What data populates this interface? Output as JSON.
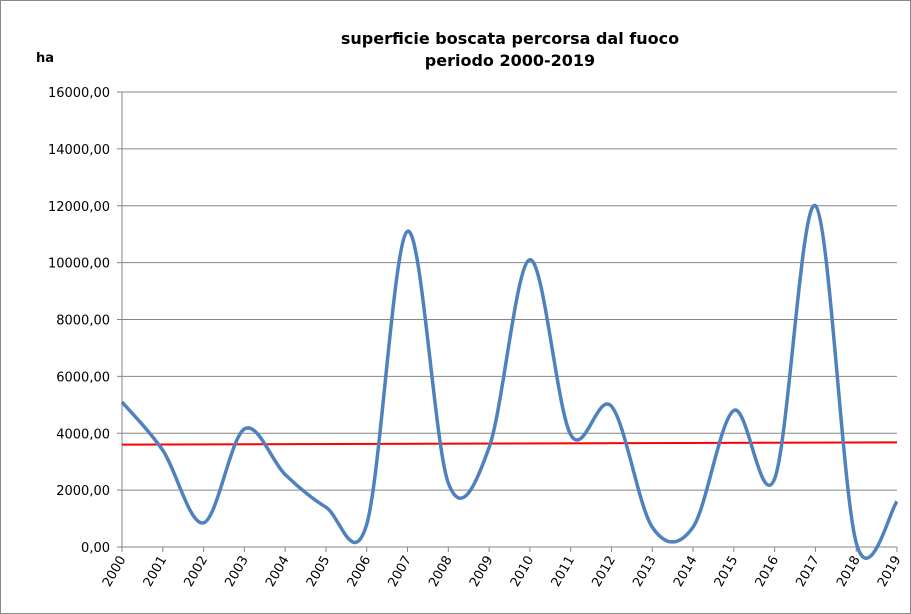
{
  "chart_data": {
    "type": "line",
    "title": "superficie boscata percorsa dal fuoco",
    "subtitle": "periodo 2000-2019",
    "y_label": "ha",
    "categories": [
      "2000",
      "2001",
      "2002",
      "2003",
      "2004",
      "2005",
      "2006",
      "2007",
      "2008",
      "2009",
      "2010",
      "2011",
      "2012",
      "2013",
      "2014",
      "2015",
      "2016",
      "2017",
      "2018",
      "2019"
    ],
    "values": [
      5100,
      3400,
      850,
      4150,
      2550,
      1400,
      800,
      11100,
      2250,
      3500,
      10100,
      3950,
      4950,
      700,
      700,
      4800,
      2400,
      12000,
      150,
      1600
    ],
    "color": "#4f81bd",
    "trend": {
      "start": 3600,
      "end": 3680,
      "color": "#ff0000"
    },
    "ylim": [
      0,
      16000
    ],
    "yticks": [
      {
        "value": 0,
        "label": "0,00"
      },
      {
        "value": 2000,
        "label": "2000,00"
      },
      {
        "value": 4000,
        "label": "4000,00"
      },
      {
        "value": 6000,
        "label": "6000,00"
      },
      {
        "value": 8000,
        "label": "8000,00"
      },
      {
        "value": 10000,
        "label": "10000,00"
      },
      {
        "value": 12000,
        "label": "12000,00"
      },
      {
        "value": 14000,
        "label": "14000,00"
      },
      {
        "value": 16000,
        "label": "16000,00"
      }
    ],
    "grid": true
  }
}
